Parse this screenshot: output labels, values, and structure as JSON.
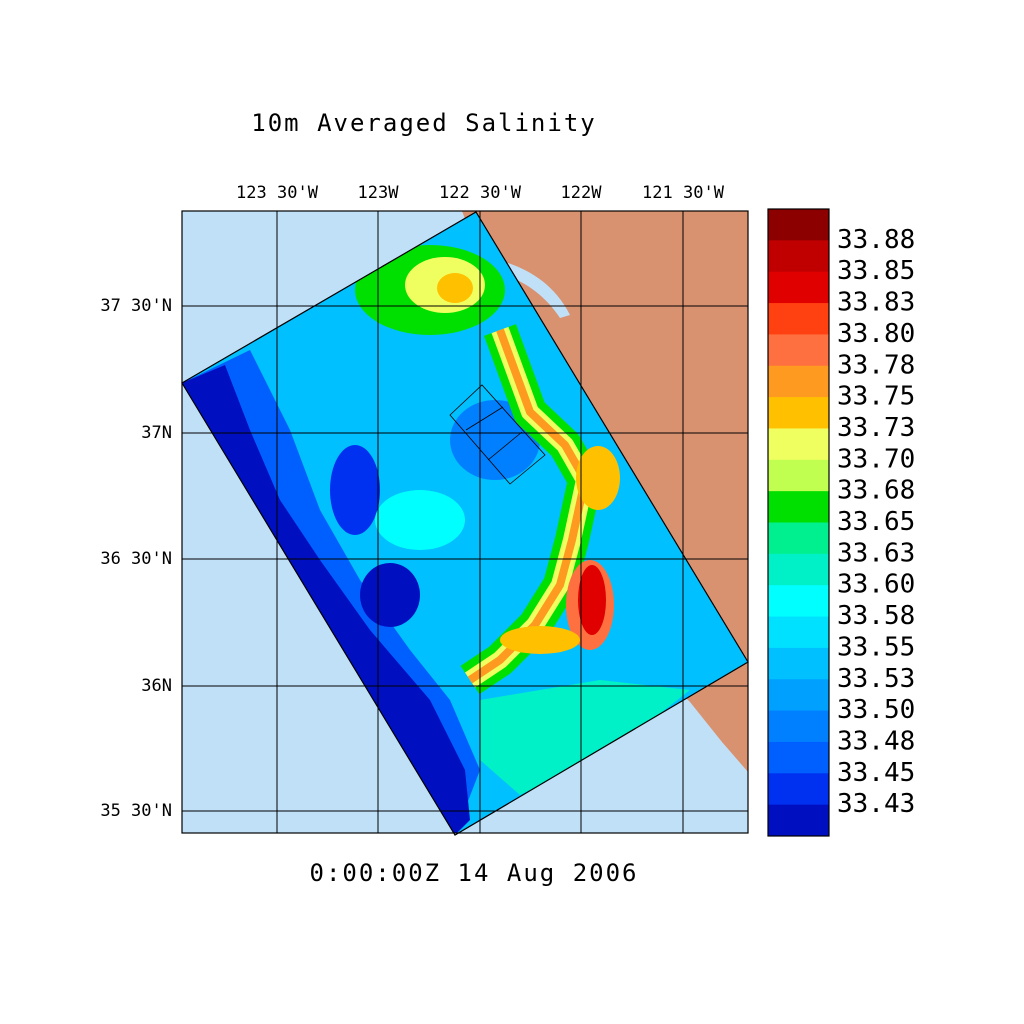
{
  "title": "10m Averaged Salinity",
  "lon_labels": [
    "123 30'W",
    "123W",
    "122 30'W",
    "122W",
    "121 30'W"
  ],
  "lat_labels": [
    "37 30'N",
    "37N",
    "36 30'N",
    "36N",
    "35 30'N"
  ],
  "timestamp": "0:00:00Z  14 Aug 2006",
  "colorbar": {
    "colors": [
      "#8c0000",
      "#c00000",
      "#e00000",
      "#ff4010",
      "#ff7040",
      "#ff9a20",
      "#ffc000",
      "#f0ff60",
      "#c0ff50",
      "#00e000",
      "#00f090",
      "#00f0c8",
      "#00ffff",
      "#00e0ff",
      "#00c0ff",
      "#00a0ff",
      "#0080ff",
      "#0060ff",
      "#0030f0",
      "#0010c0"
    ],
    "labels": [
      "33.88",
      "33.85",
      "33.83",
      "33.80",
      "33.78",
      "33.75",
      "33.73",
      "33.70",
      "33.68",
      "33.65",
      "33.63",
      "33.60",
      "33.58",
      "33.55",
      "33.53",
      "33.50",
      "33.48",
      "33.45",
      "33.43"
    ]
  }
}
